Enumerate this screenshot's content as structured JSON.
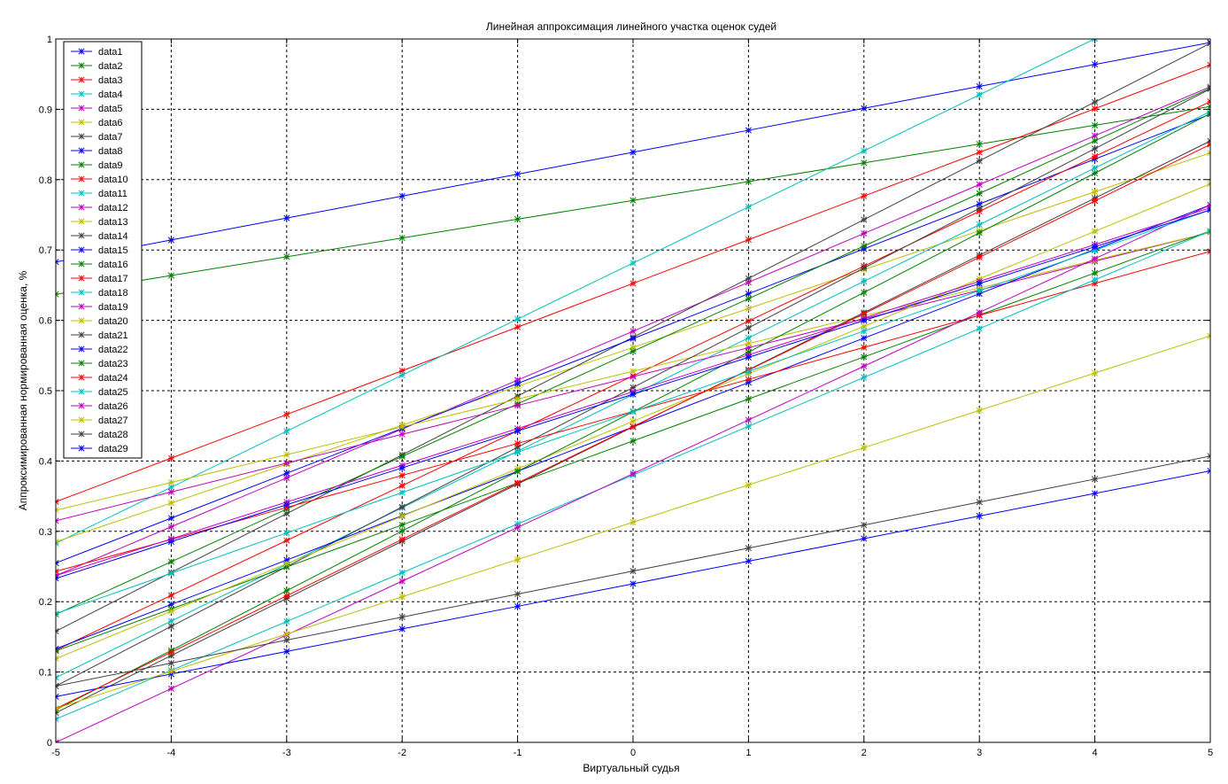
{
  "chart_data": {
    "type": "line",
    "title": "Линейная аппроксимация линейного участка оценок судей",
    "xlabel": "Виртуальный судья",
    "ylabel": "Аппроксимированная нормированная оценка, %",
    "xlim": [
      -5,
      5
    ],
    "ylim": [
      0,
      1
    ],
    "x": [
      -5,
      -4,
      -3,
      -2,
      -1,
      0,
      1,
      2,
      3,
      4,
      5
    ],
    "x_ticks": [
      "-5",
      "-4",
      "-3",
      "-2",
      "-1",
      "0",
      "1",
      "2",
      "3",
      "4",
      "5"
    ],
    "y_ticks": [
      "0",
      "0.1",
      "0.2",
      "0.3",
      "0.4",
      "0.5",
      "0.6",
      "0.7",
      "0.8",
      "0.9",
      "1"
    ],
    "grid": true,
    "grid_style": "dashed",
    "legend_position": "top-left",
    "marker": "asterisk",
    "series": [
      {
        "name": "data1",
        "color": "#0000ff",
        "start": 0.683,
        "end": 0.995
      },
      {
        "name": "data2",
        "color": "#008000",
        "start": 0.637,
        "end": 0.904
      },
      {
        "name": "data3",
        "color": "#ff0000",
        "start": 0.342,
        "end": 0.963
      },
      {
        "name": "data4",
        "color": "#00bfbf",
        "start": 0.283,
        "end": 1.08
      },
      {
        "name": "data5",
        "color": "#bf00bf",
        "start": 0.237,
        "end": 0.932
      },
      {
        "name": "data6",
        "color": "#bfbf00",
        "start": 0.285,
        "end": 0.838
      },
      {
        "name": "data7",
        "color": "#404040",
        "start": 0.158,
        "end": 0.994
      },
      {
        "name": "data8",
        "color": "#0000ff",
        "start": 0.255,
        "end": 0.893
      },
      {
        "name": "data9",
        "color": "#008000",
        "start": 0.182,
        "end": 0.93
      },
      {
        "name": "data10",
        "color": "#ff0000",
        "start": 0.131,
        "end": 0.911
      },
      {
        "name": "data11",
        "color": "#00bfbf",
        "start": 0.092,
        "end": 0.897
      },
      {
        "name": "data12",
        "color": "#bf00bf",
        "start": 0.315,
        "end": 0.725
      },
      {
        "name": "data13",
        "color": "#bfbf00",
        "start": 0.33,
        "end": 0.725
      },
      {
        "name": "data14",
        "color": "#404040",
        "start": 0.08,
        "end": 0.929
      },
      {
        "name": "data15",
        "color": "#0000ff",
        "start": 0.133,
        "end": 0.764
      },
      {
        "name": "data16",
        "color": "#008000",
        "start": 0.13,
        "end": 0.727
      },
      {
        "name": "data17",
        "color": "#ff0000",
        "start": 0.243,
        "end": 0.698
      },
      {
        "name": "data18",
        "color": "#00bfbf",
        "start": 0.033,
        "end": 0.727
      },
      {
        "name": "data19",
        "color": "#bf00bf",
        "start": 0.0,
        "end": 0.764
      },
      {
        "name": "data20",
        "color": "#bfbf00",
        "start": 0.119,
        "end": 0.794
      },
      {
        "name": "data21",
        "color": "#404040",
        "start": 0.042,
        "end": 0.855
      },
      {
        "name": "data22",
        "color": "#0000ff",
        "start": 0.065,
        "end": 0.386
      },
      {
        "name": "data23",
        "color": "#008000",
        "start": 0.046,
        "end": 0.894
      },
      {
        "name": "data24",
        "color": "#ff0000",
        "start": 0.048,
        "end": 0.85
      },
      {
        "name": "data25",
        "color": "#00bfbf",
        "start": 0.183,
        "end": 0.757
      },
      {
        "name": "data26",
        "color": "#bf00bf",
        "start": 0.237,
        "end": 0.76
      },
      {
        "name": "data27",
        "color": "#bfbf00",
        "start": 0.048,
        "end": 0.578
      },
      {
        "name": "data28",
        "color": "#404040",
        "start": 0.08,
        "end": 0.407
      },
      {
        "name": "data29",
        "color": "#0000ff",
        "start": 0.233,
        "end": 0.757
      }
    ]
  }
}
